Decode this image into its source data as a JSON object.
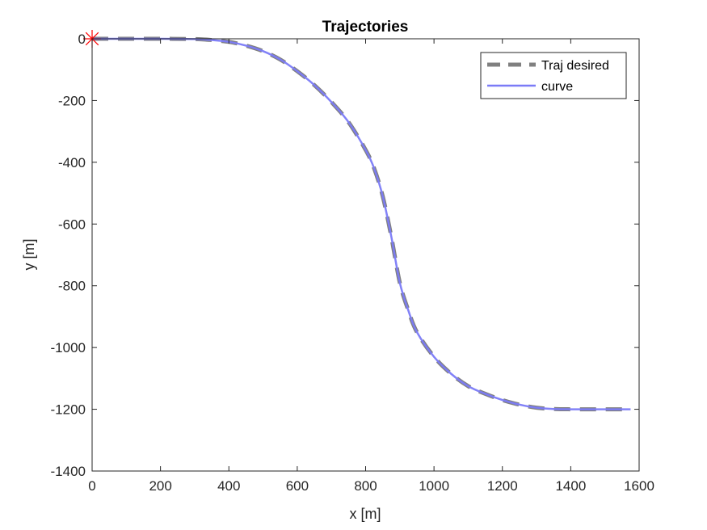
{
  "chart_data": {
    "type": "line",
    "title": "Trajectories",
    "xlabel": "x [m]",
    "ylabel": "y [m]",
    "xlim": [
      0,
      1600
    ],
    "ylim": [
      -1400,
      0
    ],
    "xticks": [
      0,
      200,
      400,
      600,
      800,
      1000,
      1200,
      1400,
      1600
    ],
    "yticks": [
      0,
      -200,
      -400,
      -600,
      -800,
      -1000,
      -1200,
      -1400
    ],
    "grid": false,
    "legend_position": "top-right",
    "series": [
      {
        "name": "Traj desired",
        "style": "dashed",
        "color": "#808080",
        "x": [
          0,
          100,
          200,
          300,
          350,
          400,
          450,
          500,
          550,
          600,
          650,
          700,
          750,
          800,
          825,
          850,
          875,
          900,
          925,
          950,
          1000,
          1050,
          1100,
          1150,
          1200,
          1250,
          1300,
          1350,
          1400,
          1450,
          1500,
          1575
        ],
        "y": [
          0,
          0,
          0,
          -1,
          -4,
          -10,
          -22,
          -40,
          -67,
          -105,
          -150,
          -205,
          -270,
          -360,
          -420,
          -510,
          -640,
          -790,
          -880,
          -950,
          -1030,
          -1085,
          -1125,
          -1150,
          -1170,
          -1185,
          -1195,
          -1199,
          -1200,
          -1200,
          -1200,
          -1200
        ]
      },
      {
        "name": "curve",
        "style": "solid",
        "color": "#7b7bf7",
        "x": [
          0,
          100,
          200,
          300,
          350,
          400,
          450,
          500,
          550,
          600,
          650,
          700,
          750,
          800,
          825,
          850,
          875,
          900,
          925,
          950,
          1000,
          1050,
          1100,
          1150,
          1200,
          1250,
          1300,
          1350,
          1400,
          1450,
          1500,
          1575
        ],
        "y": [
          0,
          0,
          0,
          -1,
          -4,
          -10,
          -22,
          -40,
          -67,
          -105,
          -150,
          -205,
          -270,
          -360,
          -420,
          -510,
          -640,
          -790,
          -880,
          -950,
          -1030,
          -1085,
          -1125,
          -1150,
          -1170,
          -1185,
          -1195,
          -1199,
          -1200,
          -1200,
          -1200,
          -1200
        ]
      }
    ],
    "markers": [
      {
        "x": 0,
        "y": 0,
        "symbol": "asterisk",
        "color": "#ff0000"
      }
    ]
  }
}
